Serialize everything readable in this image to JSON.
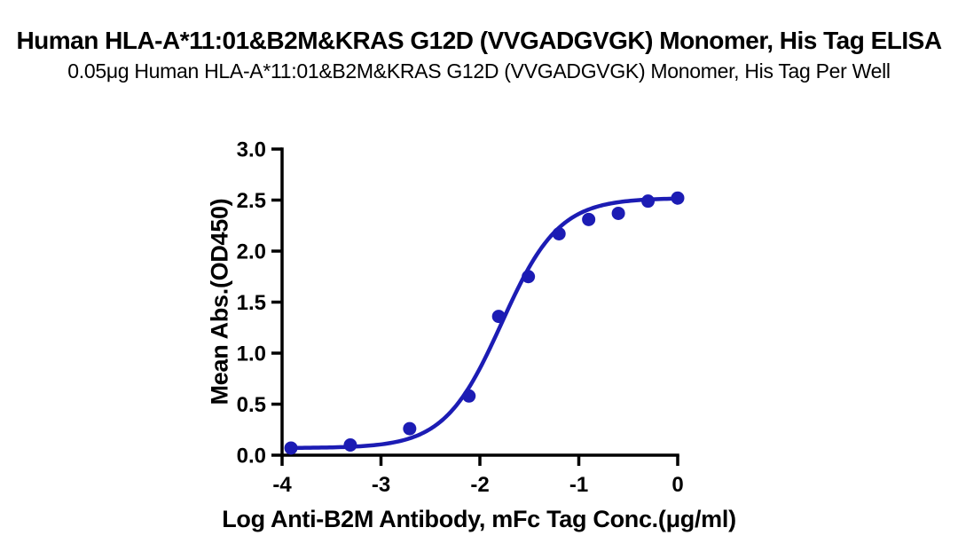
{
  "title": "Human HLA-A*11:01&B2M&KRAS G12D (VVGADGVGK) Monomer, His Tag ELISA",
  "subtitle": "0.05μg Human HLA-A*11:01&B2M&KRAS G12D (VVGADGVGK) Monomer, His Tag Per Well",
  "colors": {
    "curve": "#1c1cb4",
    "points": "#1c1cb4",
    "axis": "#000000",
    "text": "#000000",
    "background": "#ffffff"
  },
  "chart_data": {
    "type": "scatter",
    "title": "Human HLA-A*11:01&B2M&KRAS G12D (VVGADGVGK) Monomer, His Tag ELISA",
    "subtitle": "0.05μg Human HLA-A*11:01&B2M&KRAS G12D (VVGADGVGK) Monomer, His Tag Per Well",
    "xlabel": "Log Anti-B2M Antibody, mFc Tag Conc.(μg/ml)",
    "ylabel": "Mean Abs.(OD450)",
    "xlim": [
      -4,
      0
    ],
    "ylim": [
      0,
      3
    ],
    "x_tick_labels": [
      "-4",
      "-3",
      "-2",
      "-1",
      "0"
    ],
    "y_tick_labels": [
      "0.0",
      "0.5",
      "1.0",
      "1.5",
      "2.0",
      "2.5",
      "3.0"
    ],
    "grid": false,
    "legend": false,
    "x": [
      -3.91,
      -3.31,
      -2.71,
      -2.11,
      -1.81,
      -1.51,
      -1.2,
      -0.9,
      -0.6,
      -0.3,
      0.0
    ],
    "y": [
      0.07,
      0.1,
      0.26,
      0.58,
      1.36,
      1.75,
      2.17,
      2.31,
      2.37,
      2.49,
      2.52
    ],
    "fit_curve": {
      "model": "4PL",
      "bottom": 0.07,
      "top": 2.52,
      "logEC50": -1.78,
      "hillslope": 1.5,
      "x_range": [
        -3.91,
        0.0
      ]
    }
  }
}
